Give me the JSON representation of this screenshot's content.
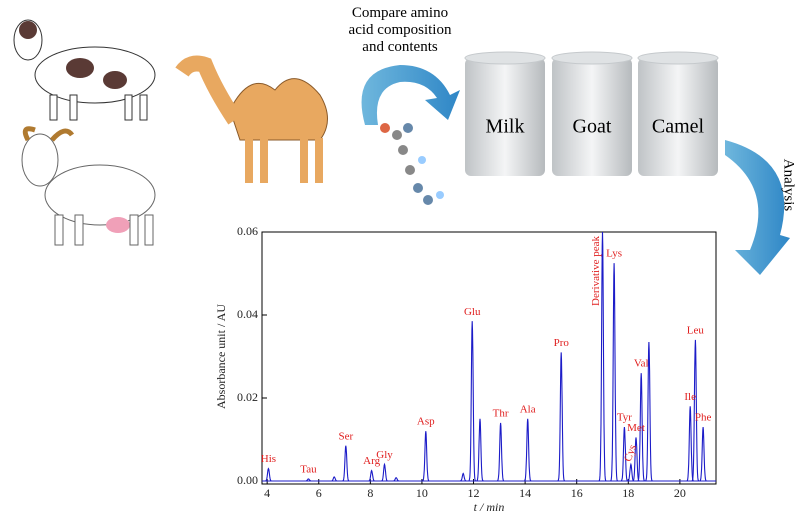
{
  "diagram": {
    "compare_text": [
      "Compare amino",
      "acid composition",
      "and contents"
    ],
    "cans": [
      "Milk",
      "Goat",
      "Camel"
    ],
    "analysis": "Analysis"
  },
  "chart_data": {
    "type": "chromatogram",
    "x_label": "t / min",
    "y_label": "Absorbance unit / AU",
    "color": "#1c1cc8",
    "label_color": "#e02020",
    "xlim": [
      3.8,
      21.4
    ],
    "xticks": [
      4,
      6,
      8,
      10,
      12,
      14,
      16,
      18,
      20
    ],
    "ylim": [
      0,
      0.06
    ],
    "yticks": [
      {
        "value": 0,
        "label": "0.00"
      },
      0.02,
      0.04,
      0.06
    ],
    "peaks": [
      {
        "label": "His",
        "x": 4.05,
        "y": 0.003
      },
      {
        "label": "Tau",
        "x": 5.6,
        "y": 0.0005
      },
      {
        "label": null,
        "x": 6.6,
        "y": 0.001
      },
      {
        "label": "Ser",
        "x": 7.05,
        "y": 0.0085
      },
      {
        "label": "Arg",
        "x": 8.05,
        "y": 0.0025
      },
      {
        "label": "Gly",
        "x": 8.55,
        "y": 0.004
      },
      {
        "label": null,
        "x": 9.0,
        "y": 0.0008
      },
      {
        "label": "Asp",
        "x": 10.15,
        "y": 0.012
      },
      {
        "label": null,
        "x": 11.6,
        "y": 0.0018
      },
      {
        "label": "Glu",
        "x": 11.95,
        "y": 0.0385
      },
      {
        "label": null,
        "x": 12.25,
        "y": 0.015
      },
      {
        "label": "Thr",
        "x": 13.05,
        "y": 0.014
      },
      {
        "label": "Ala",
        "x": 14.1,
        "y": 0.015
      },
      {
        "label": "Pro",
        "x": 15.4,
        "y": 0.031
      },
      {
        "label": "Derivative peak",
        "x": 17.0,
        "y": 0.06
      },
      {
        "label": "Lys",
        "x": 17.45,
        "y": 0.0525
      },
      {
        "label": "Tyr",
        "x": 17.85,
        "y": 0.013
      },
      {
        "label": "Cys",
        "x": 18.1,
        "y": 0.004
      },
      {
        "label": "Met",
        "x": 18.3,
        "y": 0.0105
      },
      {
        "label": "Val",
        "x": 18.5,
        "y": 0.026
      },
      {
        "label": null,
        "x": 18.8,
        "y": 0.0335
      },
      {
        "label": "Ile",
        "x": 20.4,
        "y": 0.018
      },
      {
        "label": "Leu",
        "x": 20.6,
        "y": 0.034
      },
      {
        "label": "Phe",
        "x": 20.9,
        "y": 0.013
      }
    ]
  }
}
